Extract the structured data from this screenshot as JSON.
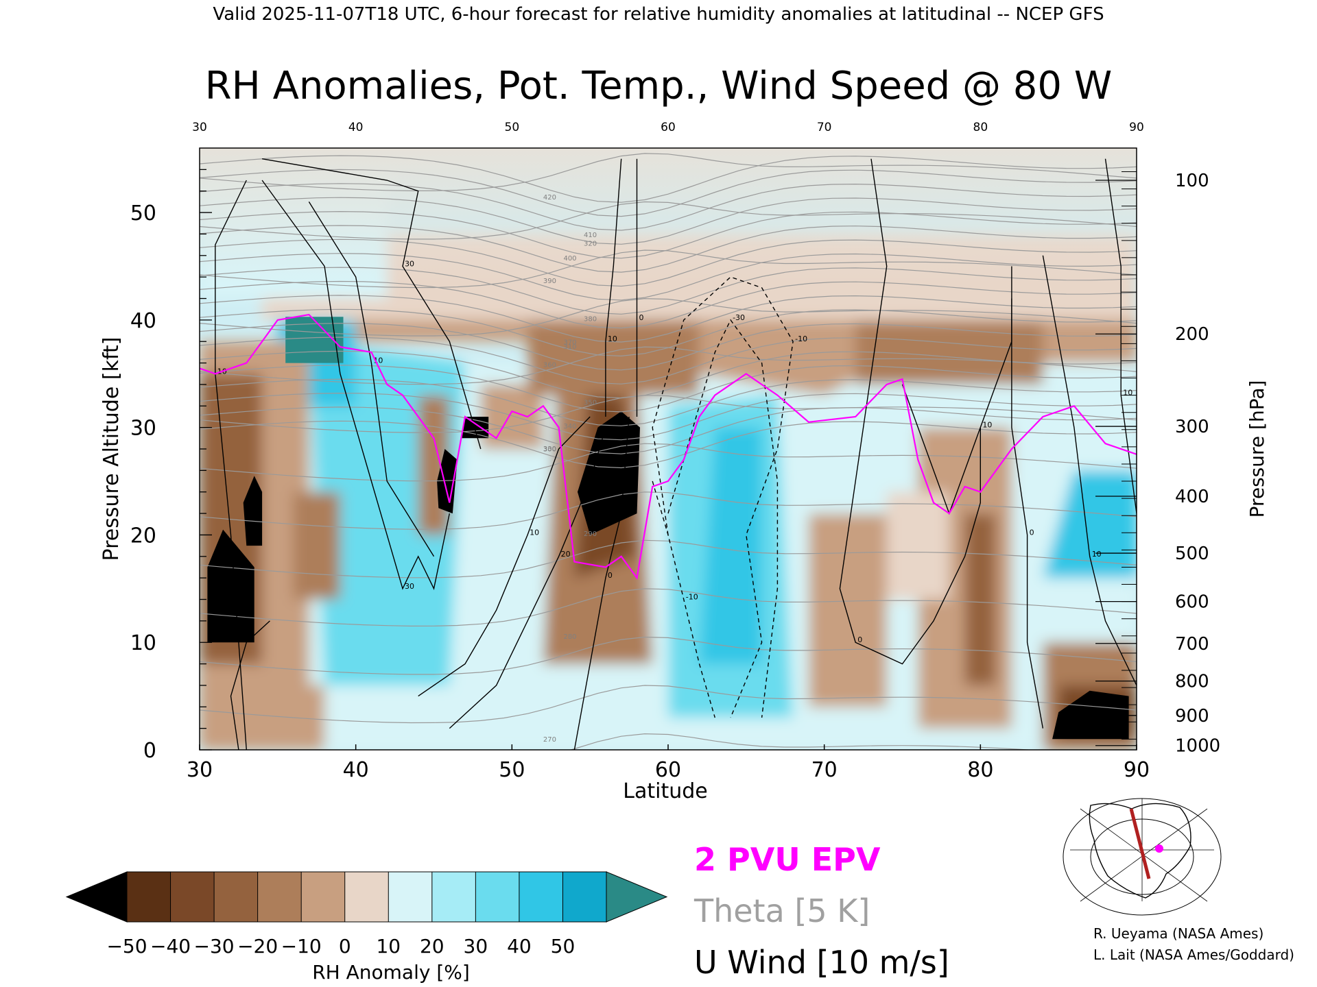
{
  "header": "Valid 2025-11-07T18 UTC, 6-hour forecast for relative humidity anomalies at latitudinal -- NCEP GFS",
  "chart_data": {
    "type": "heatmap",
    "title": "RH Anomalies, Pot. Temp., Wind Speed @ 80 W",
    "xlabel": "Latitude",
    "ylabel": "Pressure Altitude [kft]",
    "y2label": "Pressure [hPa]",
    "xlim": [
      30,
      90
    ],
    "ylim": [
      0,
      56
    ],
    "x_ticks": [
      "30",
      "40",
      "50",
      "60",
      "70",
      "80",
      "90"
    ],
    "y_ticks": [
      "0",
      "10",
      "20",
      "30",
      "40",
      "50"
    ],
    "pressure_ticks": [
      {
        "label": "100",
        "kft": 53.0
      },
      {
        "label": "200",
        "kft": 38.7
      },
      {
        "label": "300",
        "kft": 30.1
      },
      {
        "label": "400",
        "kft": 23.6
      },
      {
        "label": "500",
        "kft": 18.3
      },
      {
        "label": "600",
        "kft": 13.8
      },
      {
        "label": "700",
        "kft": 9.9
      },
      {
        "label": "800",
        "kft": 6.4
      },
      {
        "label": "900",
        "kft": 3.2
      },
      {
        "label": "1000",
        "kft": 0.4
      }
    ],
    "colorbar": {
      "label": "RH Anomaly [%]",
      "ticks": [
        "−50",
        "−40",
        "−30",
        "−20",
        "−10",
        "0",
        "10",
        "20",
        "30",
        "40",
        "50"
      ],
      "colors": [
        "#5a3014",
        "#7a4828",
        "#94623e",
        "#ad7e5a",
        "#c89f80",
        "#e8d6c8",
        "#d8f4f8",
        "#a6ecf6",
        "#6adcee",
        "#30c6e6",
        "#10a8cc"
      ],
      "under_color": "#000000",
      "over_color": "#2a8a86"
    },
    "legend": [
      {
        "label": "2 PVU EPV",
        "color": "#ff00ff"
      },
      {
        "label": "Theta [5 K]",
        "color": "#a0a0a0"
      },
      {
        "label": "U Wind [10 m/s]",
        "color": "#000000"
      }
    ],
    "theta_levels": [
      270,
      280,
      290,
      300,
      310,
      320,
      330,
      340,
      350,
      360,
      370,
      380,
      390,
      400,
      410,
      420
    ],
    "epv_2pvu_kft": [
      [
        30,
        35.5
      ],
      [
        31,
        35
      ],
      [
        33,
        36
      ],
      [
        35,
        40
      ],
      [
        37,
        40.5
      ],
      [
        39,
        37.5
      ],
      [
        41,
        37
      ],
      [
        42,
        34
      ],
      [
        43,
        33
      ],
      [
        45,
        29
      ],
      [
        46,
        23
      ],
      [
        47,
        31
      ],
      [
        49,
        29
      ],
      [
        50,
        31.5
      ],
      [
        51,
        31
      ],
      [
        52,
        32
      ],
      [
        53,
        30
      ],
      [
        54,
        17.5
      ],
      [
        56,
        17
      ],
      [
        57,
        18
      ],
      [
        58,
        16
      ],
      [
        59,
        24.5
      ],
      [
        60,
        25
      ],
      [
        61,
        27
      ],
      [
        62,
        31
      ],
      [
        63,
        33
      ],
      [
        65,
        35
      ],
      [
        67,
        33
      ],
      [
        69,
        30.5
      ],
      [
        72,
        31
      ],
      [
        74,
        34
      ],
      [
        75,
        34.5
      ],
      [
        76,
        27
      ],
      [
        77,
        23
      ],
      [
        78,
        22
      ],
      [
        79,
        24.5
      ],
      [
        80,
        24
      ],
      [
        82,
        28
      ],
      [
        84,
        31
      ],
      [
        86,
        32
      ],
      [
        88,
        28.5
      ],
      [
        90,
        27.5
      ]
    ],
    "u_wind_levels": [
      -10,
      0,
      10,
      20,
      30,
      40,
      50
    ]
  },
  "credits": [
    "R. Ueyama (NASA Ames)",
    "L. Lait (NASA Ames/Goddard)"
  ]
}
